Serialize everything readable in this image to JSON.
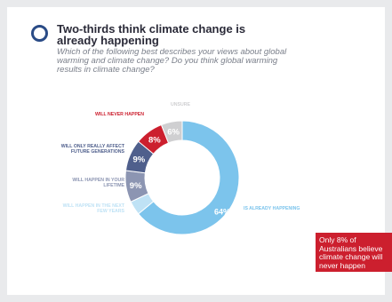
{
  "header": {
    "title": "Two-thirds think climate change is already happening",
    "question": "Which of the following best describes your views about global warming and climate change? Do you think global warming results in climate change?"
  },
  "chart_data": {
    "type": "pie",
    "donut": true,
    "categories": [
      "Is already happening",
      "Will happen in the next few years",
      "Will happen in your lifetime",
      "Will only really affect future generations",
      "Will never happen",
      "Unsure"
    ],
    "values": [
      64,
      4,
      9,
      9,
      8,
      6
    ],
    "value_labels": [
      "64%",
      "",
      "9%",
      "9%",
      "8%",
      "6%"
    ],
    "colors": [
      "#7cc4ec",
      "#bfe2f5",
      "#8c95b2",
      "#4f5f8c",
      "#cc1f2e",
      "#cfcfd1"
    ],
    "label_colors": [
      "#7cc4ec",
      "#bfe2f5",
      "#8c95b2",
      "#4f5f8c",
      "#cc1f2e",
      "#cfcfd1"
    ],
    "legend": "direct labels beside slices"
  },
  "callout": {
    "text": "Only 8% of Australians believe climate change will never happen"
  }
}
